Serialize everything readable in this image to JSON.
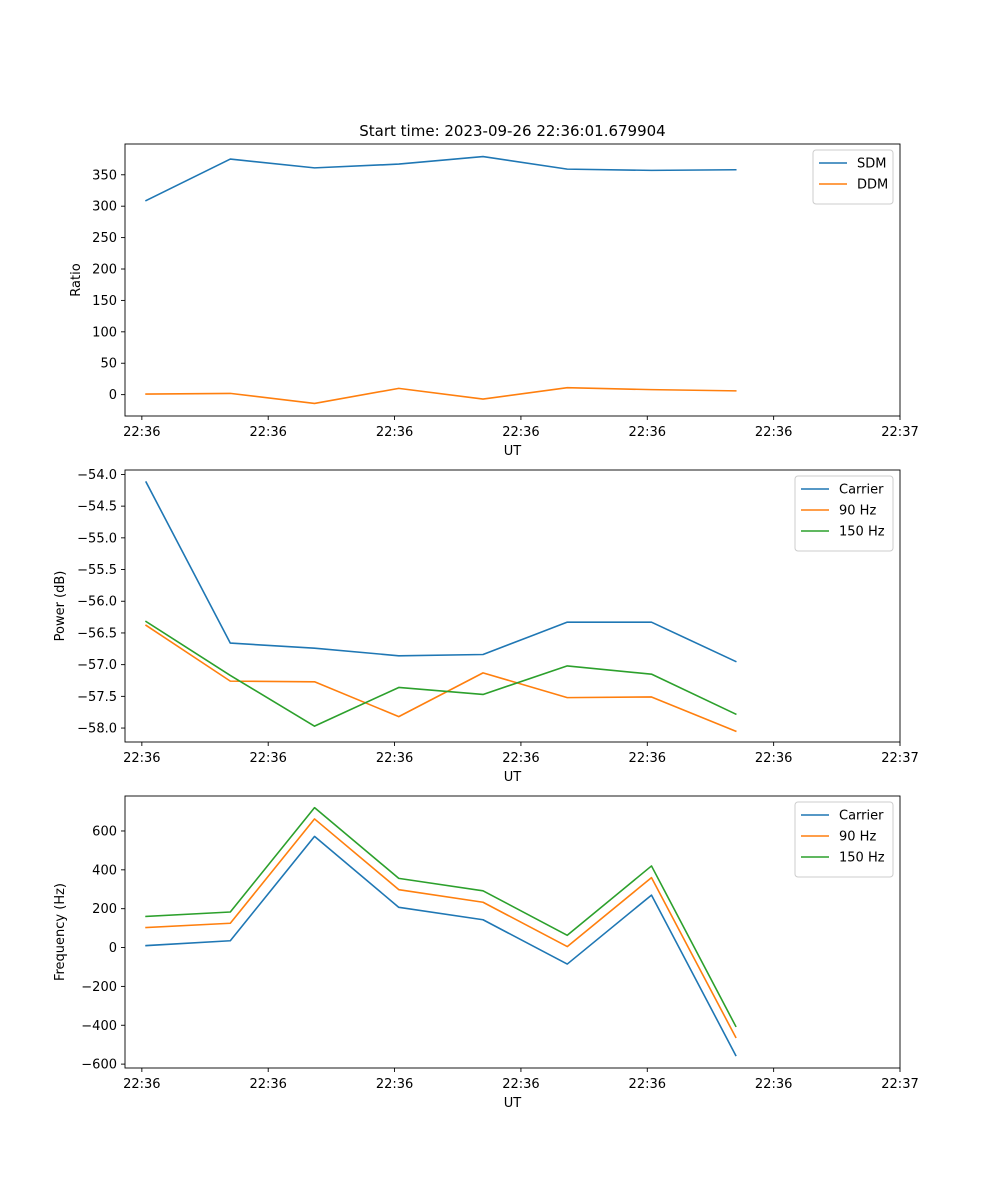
{
  "figure": {
    "title": "Start time: 2023-09-26 22:36:01.679904"
  },
  "colors": {
    "blue": "#1f77b4",
    "orange": "#ff7f0e",
    "green": "#2ca02c"
  },
  "chart_data": [
    {
      "type": "line",
      "title": "Start time: 2023-09-26 22:36:01.679904",
      "xlabel": "UT",
      "ylabel": "Ratio",
      "x": [
        1,
        2,
        3,
        4,
        5,
        6,
        7,
        8
      ],
      "xlim": [
        0.75,
        9.95
      ],
      "x_ticks": [
        0.95,
        2.45,
        3.95,
        5.45,
        6.95,
        8.45,
        9.95
      ],
      "x_tick_labels": [
        "22:36",
        "22:36",
        "22:36",
        "22:36",
        "22:36",
        "22:36",
        "22:37"
      ],
      "ylim": [
        -34,
        399
      ],
      "y_ticks": [
        0,
        50,
        100,
        150,
        200,
        250,
        300,
        350
      ],
      "y_tick_labels": [
        "0",
        "50",
        "100",
        "150",
        "200",
        "250",
        "300",
        "350"
      ],
      "legend": "top-right",
      "series": [
        {
          "name": "SDM",
          "color": "#1f77b4",
          "values": [
            309,
            375,
            361,
            367,
            379,
            359,
            357,
            358
          ]
        },
        {
          "name": "DDM",
          "color": "#ff7f0e",
          "values": [
            1,
            2,
            -14,
            10,
            -7,
            11,
            8,
            6
          ]
        }
      ]
    },
    {
      "type": "line",
      "title": "",
      "xlabel": "UT",
      "ylabel": "Power (dB)",
      "x": [
        1,
        2,
        3,
        4,
        5,
        6,
        7,
        8
      ],
      "xlim": [
        0.75,
        9.95
      ],
      "x_ticks": [
        0.95,
        2.45,
        3.95,
        5.45,
        6.95,
        8.45,
        9.95
      ],
      "x_tick_labels": [
        "22:36",
        "22:36",
        "22:36",
        "22:36",
        "22:36",
        "22:36",
        "22:37"
      ],
      "ylim": [
        -58.22,
        -53.93
      ],
      "y_ticks": [
        -58.0,
        -57.5,
        -57.0,
        -56.5,
        -56.0,
        -55.5,
        -55.0,
        -54.5,
        -54.0
      ],
      "y_tick_labels": [
        "−58.0",
        "−57.5",
        "−57.0",
        "−56.5",
        "−56.0",
        "−55.5",
        "−55.0",
        "−54.5",
        "−54.0"
      ],
      "legend": "top-right",
      "series": [
        {
          "name": "Carrier",
          "color": "#1f77b4",
          "values": [
            -54.12,
            -56.66,
            -56.74,
            -56.86,
            -56.84,
            -56.33,
            -56.33,
            -56.95
          ]
        },
        {
          "name": "90 Hz",
          "color": "#ff7f0e",
          "values": [
            -56.38,
            -57.26,
            -57.27,
            -57.82,
            -57.13,
            -57.52,
            -57.51,
            -58.05
          ]
        },
        {
          "name": "150 Hz",
          "color": "#2ca02c",
          "values": [
            -56.32,
            -57.17,
            -57.97,
            -57.36,
            -57.47,
            -57.02,
            -57.15,
            -57.78
          ]
        }
      ]
    },
    {
      "type": "line",
      "title": "",
      "xlabel": "UT",
      "ylabel": "Frequency (Hz)",
      "x": [
        1,
        2,
        3,
        4,
        5,
        6,
        7,
        8
      ],
      "xlim": [
        0.75,
        9.95
      ],
      "x_ticks": [
        0.95,
        2.45,
        3.95,
        5.45,
        6.95,
        8.45,
        9.95
      ],
      "x_tick_labels": [
        "22:36",
        "22:36",
        "22:36",
        "22:36",
        "22:36",
        "22:36",
        "22:37"
      ],
      "ylim": [
        -620,
        780
      ],
      "y_ticks": [
        -600,
        -400,
        -200,
        0,
        200,
        400,
        600
      ],
      "y_tick_labels": [
        "−600",
        "−400",
        "−200",
        "0",
        "200",
        "400",
        "600"
      ],
      "legend": "top-right",
      "series": [
        {
          "name": "Carrier",
          "color": "#1f77b4",
          "values": [
            10,
            35,
            572,
            207,
            143,
            -85,
            270,
            -555
          ]
        },
        {
          "name": "90 Hz",
          "color": "#ff7f0e",
          "values": [
            103,
            125,
            662,
            298,
            233,
            5,
            360,
            -462
          ]
        },
        {
          "name": "150 Hz",
          "color": "#2ca02c",
          "values": [
            160,
            183,
            720,
            356,
            292,
            63,
            420,
            -405
          ]
        }
      ]
    }
  ]
}
